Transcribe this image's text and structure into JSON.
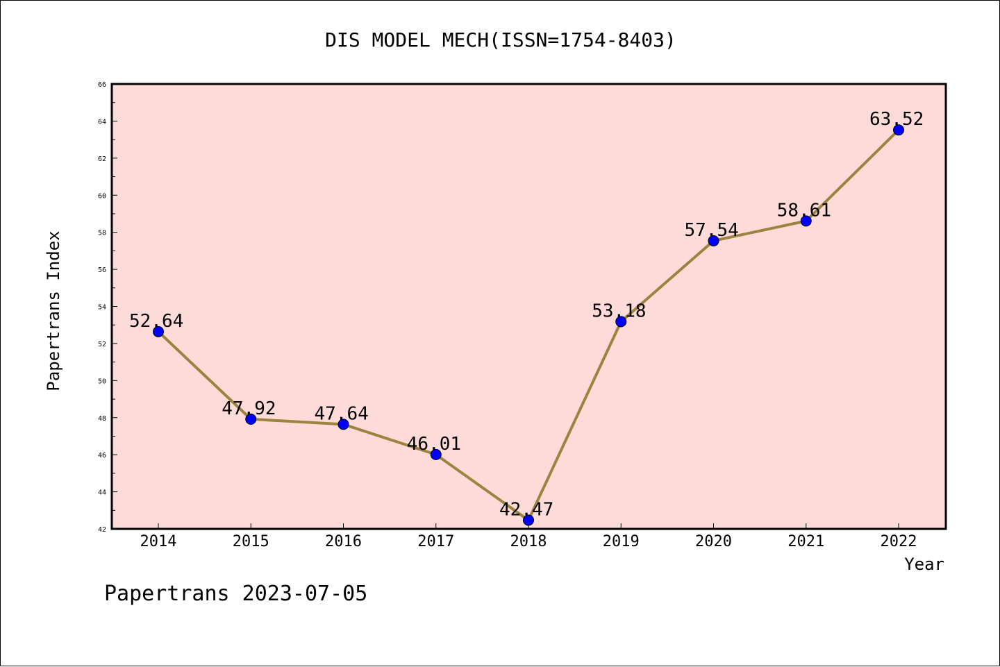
{
  "chart_data": {
    "type": "line",
    "title": "DIS MODEL MECH(ISSN=1754-8403)",
    "xlabel": "Year",
    "ylabel": "Papertrans Index",
    "categories": [
      "2014",
      "2015",
      "2016",
      "2017",
      "2018",
      "2019",
      "2020",
      "2021",
      "2022"
    ],
    "series": [
      {
        "values": [
          52.64,
          47.92,
          47.64,
          46.01,
          42.47,
          53.18,
          57.54,
          58.61,
          63.52
        ],
        "data_labels": [
          "52.64",
          "47.92",
          "47.64",
          "46.01",
          "42.47",
          "53.18",
          "57.54",
          "58.61",
          "63.52"
        ],
        "line_color": "#9a8440",
        "marker_color": "#0000ff"
      }
    ],
    "ylim": [
      42,
      66
    ],
    "yticks": [
      "42",
      "44",
      "46",
      "48",
      "50",
      "52",
      "54",
      "56",
      "58",
      "60",
      "62",
      "64",
      "66"
    ],
    "plot_background": "#fddbd8",
    "grid": false,
    "legend": "none"
  },
  "footer": {
    "text": "Papertrans 2023-07-05"
  }
}
